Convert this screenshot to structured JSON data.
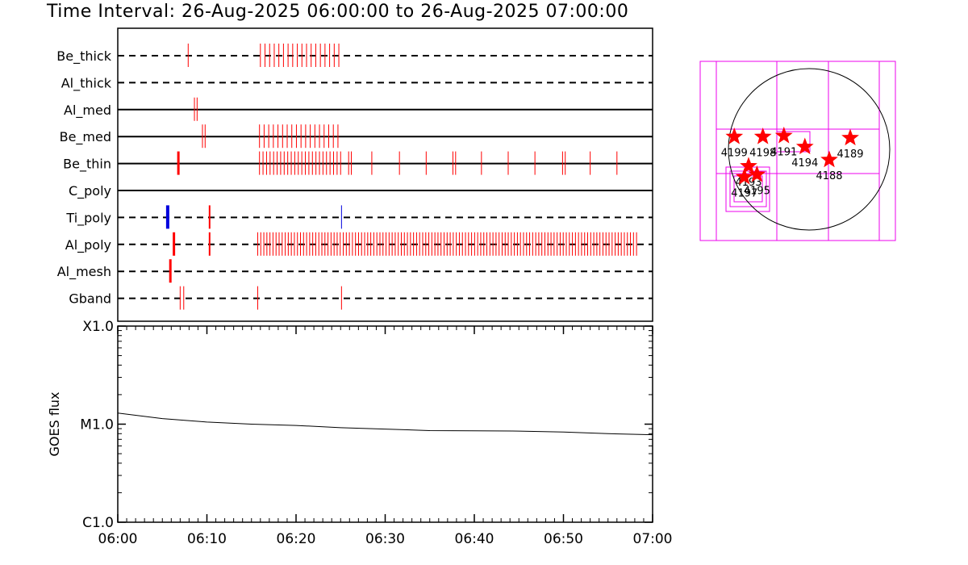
{
  "title": "Time Interval: 26-Aug-2025 06:00:00 to 26-Aug-2025 07:00:00",
  "colors": {
    "red": "#ff0000",
    "blue": "#0000dd",
    "magenta": "#ee00ee",
    "black": "#000000"
  },
  "chart_data": [
    {
      "type": "event-timeline",
      "time_range": [
        "06:00",
        "07:00"
      ],
      "rows": [
        {
          "label": "Be_thick",
          "style": "dashed",
          "events": [
            {
              "t": 7.9,
              "c": "red",
              "w": 1
            }
          ],
          "runs": [
            {
              "start": 16.0,
              "end": 24.8,
              "n": 18,
              "c": "red",
              "w": 1
            }
          ]
        },
        {
          "label": "Al_thick",
          "style": "dashed",
          "events": [],
          "runs": []
        },
        {
          "label": "Al_med",
          "style": "solid",
          "events": [
            {
              "t": 8.6,
              "c": "red",
              "w": 1
            },
            {
              "t": 8.9,
              "c": "red",
              "w": 1
            }
          ],
          "runs": []
        },
        {
          "label": "Be_med",
          "style": "solid",
          "events": [
            {
              "t": 9.5,
              "c": "red",
              "w": 1
            },
            {
              "t": 9.8,
              "c": "red",
              "w": 1
            }
          ],
          "runs": [
            {
              "start": 15.9,
              "end": 24.7,
              "n": 18,
              "c": "red",
              "w": 1
            }
          ]
        },
        {
          "label": "Be_thin",
          "style": "solid",
          "events": [
            {
              "t": 6.8,
              "c": "red",
              "w": 3
            },
            {
              "t": 25.9,
              "c": "red",
              "w": 1
            },
            {
              "t": 26.2,
              "c": "red",
              "w": 1
            },
            {
              "t": 28.5,
              "c": "red",
              "w": 1
            },
            {
              "t": 31.6,
              "c": "red",
              "w": 1
            },
            {
              "t": 34.6,
              "c": "red",
              "w": 1
            },
            {
              "t": 37.6,
              "c": "red",
              "w": 1
            },
            {
              "t": 37.9,
              "c": "red",
              "w": 1
            },
            {
              "t": 40.8,
              "c": "red",
              "w": 1
            },
            {
              "t": 43.8,
              "c": "red",
              "w": 1
            },
            {
              "t": 46.8,
              "c": "red",
              "w": 1
            },
            {
              "t": 49.9,
              "c": "red",
              "w": 1
            },
            {
              "t": 50.2,
              "c": "red",
              "w": 1
            },
            {
              "t": 53.0,
              "c": "red",
              "w": 1
            },
            {
              "t": 56.0,
              "c": "red",
              "w": 1
            }
          ],
          "runs": [
            {
              "start": 15.9,
              "end": 25.0,
              "n": 24,
              "c": "red",
              "w": 1
            }
          ]
        },
        {
          "label": "C_poly",
          "style": "solid",
          "events": [],
          "runs": []
        },
        {
          "label": "Ti_poly",
          "style": "dashed",
          "events": [
            {
              "t": 5.6,
              "c": "blue",
              "w": 4
            },
            {
              "t": 10.3,
              "c": "red",
              "w": 2
            },
            {
              "t": 25.1,
              "c": "blue",
              "w": 1
            }
          ],
          "runs": []
        },
        {
          "label": "Al_poly",
          "style": "dashed",
          "events": [
            {
              "t": 6.3,
              "c": "red",
              "w": 3
            },
            {
              "t": 10.3,
              "c": "red",
              "w": 2
            }
          ],
          "runs": [
            {
              "start": 15.7,
              "end": 58.2,
              "n": 125,
              "c": "red",
              "w": 1
            }
          ]
        },
        {
          "label": "Al_mesh",
          "style": "dashed",
          "events": [
            {
              "t": 5.9,
              "c": "red",
              "w": 3
            }
          ],
          "runs": []
        },
        {
          "label": "Gband",
          "style": "dashed",
          "events": [
            {
              "t": 7.0,
              "c": "red",
              "w": 1
            },
            {
              "t": 7.4,
              "c": "red",
              "w": 1
            },
            {
              "t": 15.7,
              "c": "red",
              "w": 1
            },
            {
              "t": 25.1,
              "c": "red",
              "w": 1
            }
          ],
          "runs": []
        }
      ]
    },
    {
      "type": "line",
      "ylabel": "GOES flux",
      "yscale": "log",
      "ylim": [
        1e-06,
        0.0001
      ],
      "yticks": [
        {
          "v": 0.0001,
          "label": "X1.0"
        },
        {
          "v": 1e-05,
          "label": "M1.0"
        },
        {
          "v": 1e-06,
          "label": "C1.0"
        }
      ],
      "xlim": [
        "06:00",
        "07:00"
      ],
      "xticks": [
        "06:00",
        "06:10",
        "06:20",
        "06:30",
        "06:40",
        "06:50",
        "07:00"
      ],
      "series": [
        {
          "x": [
            0,
            5,
            10,
            15,
            20,
            25,
            30,
            35,
            40,
            45,
            50,
            55,
            60
          ],
          "y": [
            1.3e-05,
            1.14e-05,
            1.05e-05,
            1e-05,
            9.7e-06,
            9.2e-06,
            8.9e-06,
            8.6e-06,
            8.55e-06,
            8.5e-06,
            8.3e-06,
            8e-06,
            7.8e-06
          ]
        }
      ]
    },
    {
      "type": "solar-map",
      "regions": [
        {
          "id": "4199",
          "x": -890,
          "y": 150
        },
        {
          "id": "4198",
          "x": -550,
          "y": 150
        },
        {
          "id": "4191",
          "x": -300,
          "y": 160
        },
        {
          "id": "4194",
          "x": -50,
          "y": 30
        },
        {
          "id": "4189",
          "x": 490,
          "y": 135
        },
        {
          "id": "4188",
          "x": 240,
          "y": -125
        },
        {
          "id": "4193",
          "x": -720,
          "y": -200
        },
        {
          "id": "4197",
          "x": -770,
          "y": -330
        },
        {
          "id": "4195",
          "x": -620,
          "y": -300
        }
      ]
    }
  ]
}
